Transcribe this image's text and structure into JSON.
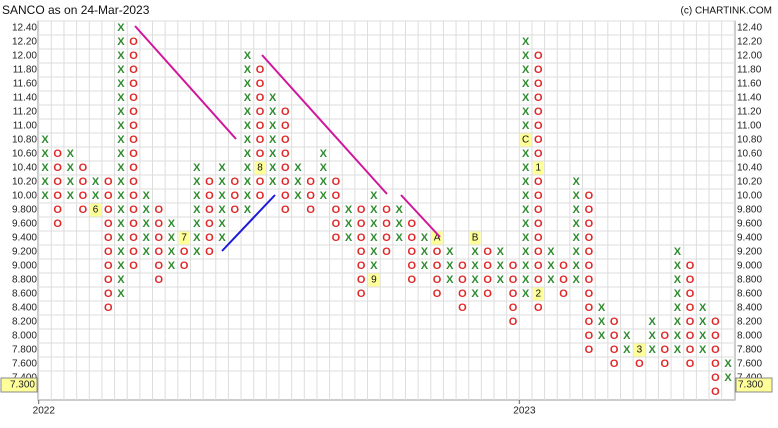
{
  "chart_data": {
    "type": "point-and-figure",
    "title": "SANCO as on 24-Mar-2023",
    "source": "(c) CHARTINK.COM",
    "box_size": 0.2,
    "x_color": "#2e8b2e",
    "o_color": "#e02828",
    "marker_color": "#ffff99",
    "ylim": [
      7.2,
      12.5
    ],
    "yticks": [
      {
        "value": 12.4,
        "label": "12.40"
      },
      {
        "value": 12.2,
        "label": "12.20"
      },
      {
        "value": 12.0,
        "label": "12.00"
      },
      {
        "value": 11.8,
        "label": "11.80"
      },
      {
        "value": 11.6,
        "label": "11.60"
      },
      {
        "value": 11.4,
        "label": "11.40"
      },
      {
        "value": 11.2,
        "label": "11.20"
      },
      {
        "value": 11.0,
        "label": "11.00"
      },
      {
        "value": 10.8,
        "label": "10.80"
      },
      {
        "value": 10.6,
        "label": "10.60"
      },
      {
        "value": 10.4,
        "label": "10.40"
      },
      {
        "value": 10.2,
        "label": "10.20"
      },
      {
        "value": 10.0,
        "label": "10.00"
      },
      {
        "value": 9.8,
        "label": "9.800"
      },
      {
        "value": 9.6,
        "label": "9.600"
      },
      {
        "value": 9.4,
        "label": "9.400"
      },
      {
        "value": 9.2,
        "label": "9.200"
      },
      {
        "value": 9.0,
        "label": "9.000"
      },
      {
        "value": 8.8,
        "label": "8.800"
      },
      {
        "value": 8.6,
        "label": "8.600"
      },
      {
        "value": 8.4,
        "label": "8.400"
      },
      {
        "value": 8.2,
        "label": "8.200"
      },
      {
        "value": 8.0,
        "label": "8.000"
      },
      {
        "value": 7.8,
        "label": "7.800"
      },
      {
        "value": 7.6,
        "label": "7.600"
      },
      {
        "value": 7.4,
        "label": "7.400"
      }
    ],
    "last_price": {
      "value": 7.3,
      "label": "7.300"
    },
    "columns": [
      {
        "type": "X",
        "high": 10.8,
        "low": 10.0,
        "year": "2022"
      },
      {
        "type": "O",
        "high": 10.6,
        "low": 9.6
      },
      {
        "type": "X",
        "high": 10.6,
        "low": 10.0
      },
      {
        "type": "O",
        "high": 10.4,
        "low": 9.8
      },
      {
        "type": "X",
        "high": 10.2,
        "low": 9.8,
        "markers": [
          {
            "label": "6",
            "price": 9.8
          }
        ]
      },
      {
        "type": "O",
        "high": 10.2,
        "low": 8.4
      },
      {
        "type": "X",
        "high": 12.4,
        "low": 8.6
      },
      {
        "type": "O",
        "high": 12.2,
        "low": 9.0
      },
      {
        "type": "X",
        "high": 10.0,
        "low": 9.2
      },
      {
        "type": "O",
        "high": 9.8,
        "low": 8.8
      },
      {
        "type": "X",
        "high": 9.6,
        "low": 9.0
      },
      {
        "type": "O",
        "high": 9.4,
        "low": 9.0,
        "markers": [
          {
            "label": "7",
            "price": 9.4
          }
        ]
      },
      {
        "type": "X",
        "high": 10.4,
        "low": 9.2
      },
      {
        "type": "O",
        "high": 10.2,
        "low": 9.2
      },
      {
        "type": "X",
        "high": 10.4,
        "low": 9.4
      },
      {
        "type": "O",
        "high": 10.2,
        "low": 9.8
      },
      {
        "type": "X",
        "high": 12.0,
        "low": 9.8
      },
      {
        "type": "O",
        "high": 11.8,
        "low": 10.0,
        "markers": [
          {
            "label": "8",
            "price": 10.4
          }
        ]
      },
      {
        "type": "X",
        "high": 11.4,
        "low": 10.2
      },
      {
        "type": "O",
        "high": 11.2,
        "low": 9.8
      },
      {
        "type": "X",
        "high": 10.4,
        "low": 10.0
      },
      {
        "type": "O",
        "high": 10.2,
        "low": 9.8
      },
      {
        "type": "X",
        "high": 10.6,
        "low": 10.0
      },
      {
        "type": "O",
        "high": 10.2,
        "low": 9.4
      },
      {
        "type": "X",
        "high": 9.8,
        "low": 9.4
      },
      {
        "type": "O",
        "high": 9.8,
        "low": 8.6
      },
      {
        "type": "X",
        "high": 10.0,
        "low": 8.8,
        "markers": [
          {
            "label": "9",
            "price": 8.8
          }
        ]
      },
      {
        "type": "O",
        "high": 9.8,
        "low": 9.2
      },
      {
        "type": "X",
        "high": 9.8,
        "low": 9.4
      },
      {
        "type": "O",
        "high": 9.6,
        "low": 8.8
      },
      {
        "type": "X",
        "high": 9.4,
        "low": 9.0
      },
      {
        "type": "O",
        "high": 9.4,
        "low": 8.6,
        "markers": [
          {
            "label": "A",
            "price": 9.4
          }
        ]
      },
      {
        "type": "X",
        "high": 9.2,
        "low": 8.8
      },
      {
        "type": "O",
        "high": 9.0,
        "low": 8.4
      },
      {
        "type": "X",
        "high": 9.4,
        "low": 8.6,
        "markers": [
          {
            "label": "B",
            "price": 9.4
          }
        ]
      },
      {
        "type": "O",
        "high": 9.2,
        "low": 8.6
      },
      {
        "type": "X",
        "high": 9.2,
        "low": 8.8
      },
      {
        "type": "O",
        "high": 9.0,
        "low": 8.2
      },
      {
        "type": "X",
        "high": 12.2,
        "low": 8.6,
        "year": "2023",
        "markers": [
          {
            "label": "C",
            "price": 10.8
          }
        ]
      },
      {
        "type": "O",
        "high": 12.0,
        "low": 8.4,
        "markers": [
          {
            "label": "1",
            "price": 10.4
          },
          {
            "label": "2",
            "price": 8.6
          }
        ]
      },
      {
        "type": "X",
        "high": 9.2,
        "low": 8.8
      },
      {
        "type": "O",
        "high": 9.0,
        "low": 8.6
      },
      {
        "type": "X",
        "high": 10.2,
        "low": 8.8
      },
      {
        "type": "O",
        "high": 10.0,
        "low": 7.8
      },
      {
        "type": "X",
        "high": 8.4,
        "low": 8.0
      },
      {
        "type": "O",
        "high": 8.2,
        "low": 7.6
      },
      {
        "type": "X",
        "high": 8.0,
        "low": 7.8
      },
      {
        "type": "O",
        "high": 7.8,
        "low": 7.6,
        "markers": [
          {
            "label": "3",
            "price": 7.8
          }
        ]
      },
      {
        "type": "X",
        "high": 8.2,
        "low": 7.8
      },
      {
        "type": "O",
        "high": 8.0,
        "low": 7.6
      },
      {
        "type": "X",
        "high": 9.2,
        "low": 7.8
      },
      {
        "type": "O",
        "high": 9.0,
        "low": 7.6
      },
      {
        "type": "X",
        "high": 8.4,
        "low": 7.8
      },
      {
        "type": "O",
        "high": 8.2,
        "low": 7.3
      },
      {
        "type": "X",
        "high": 7.6,
        "low": 7.4
      }
    ]
  }
}
